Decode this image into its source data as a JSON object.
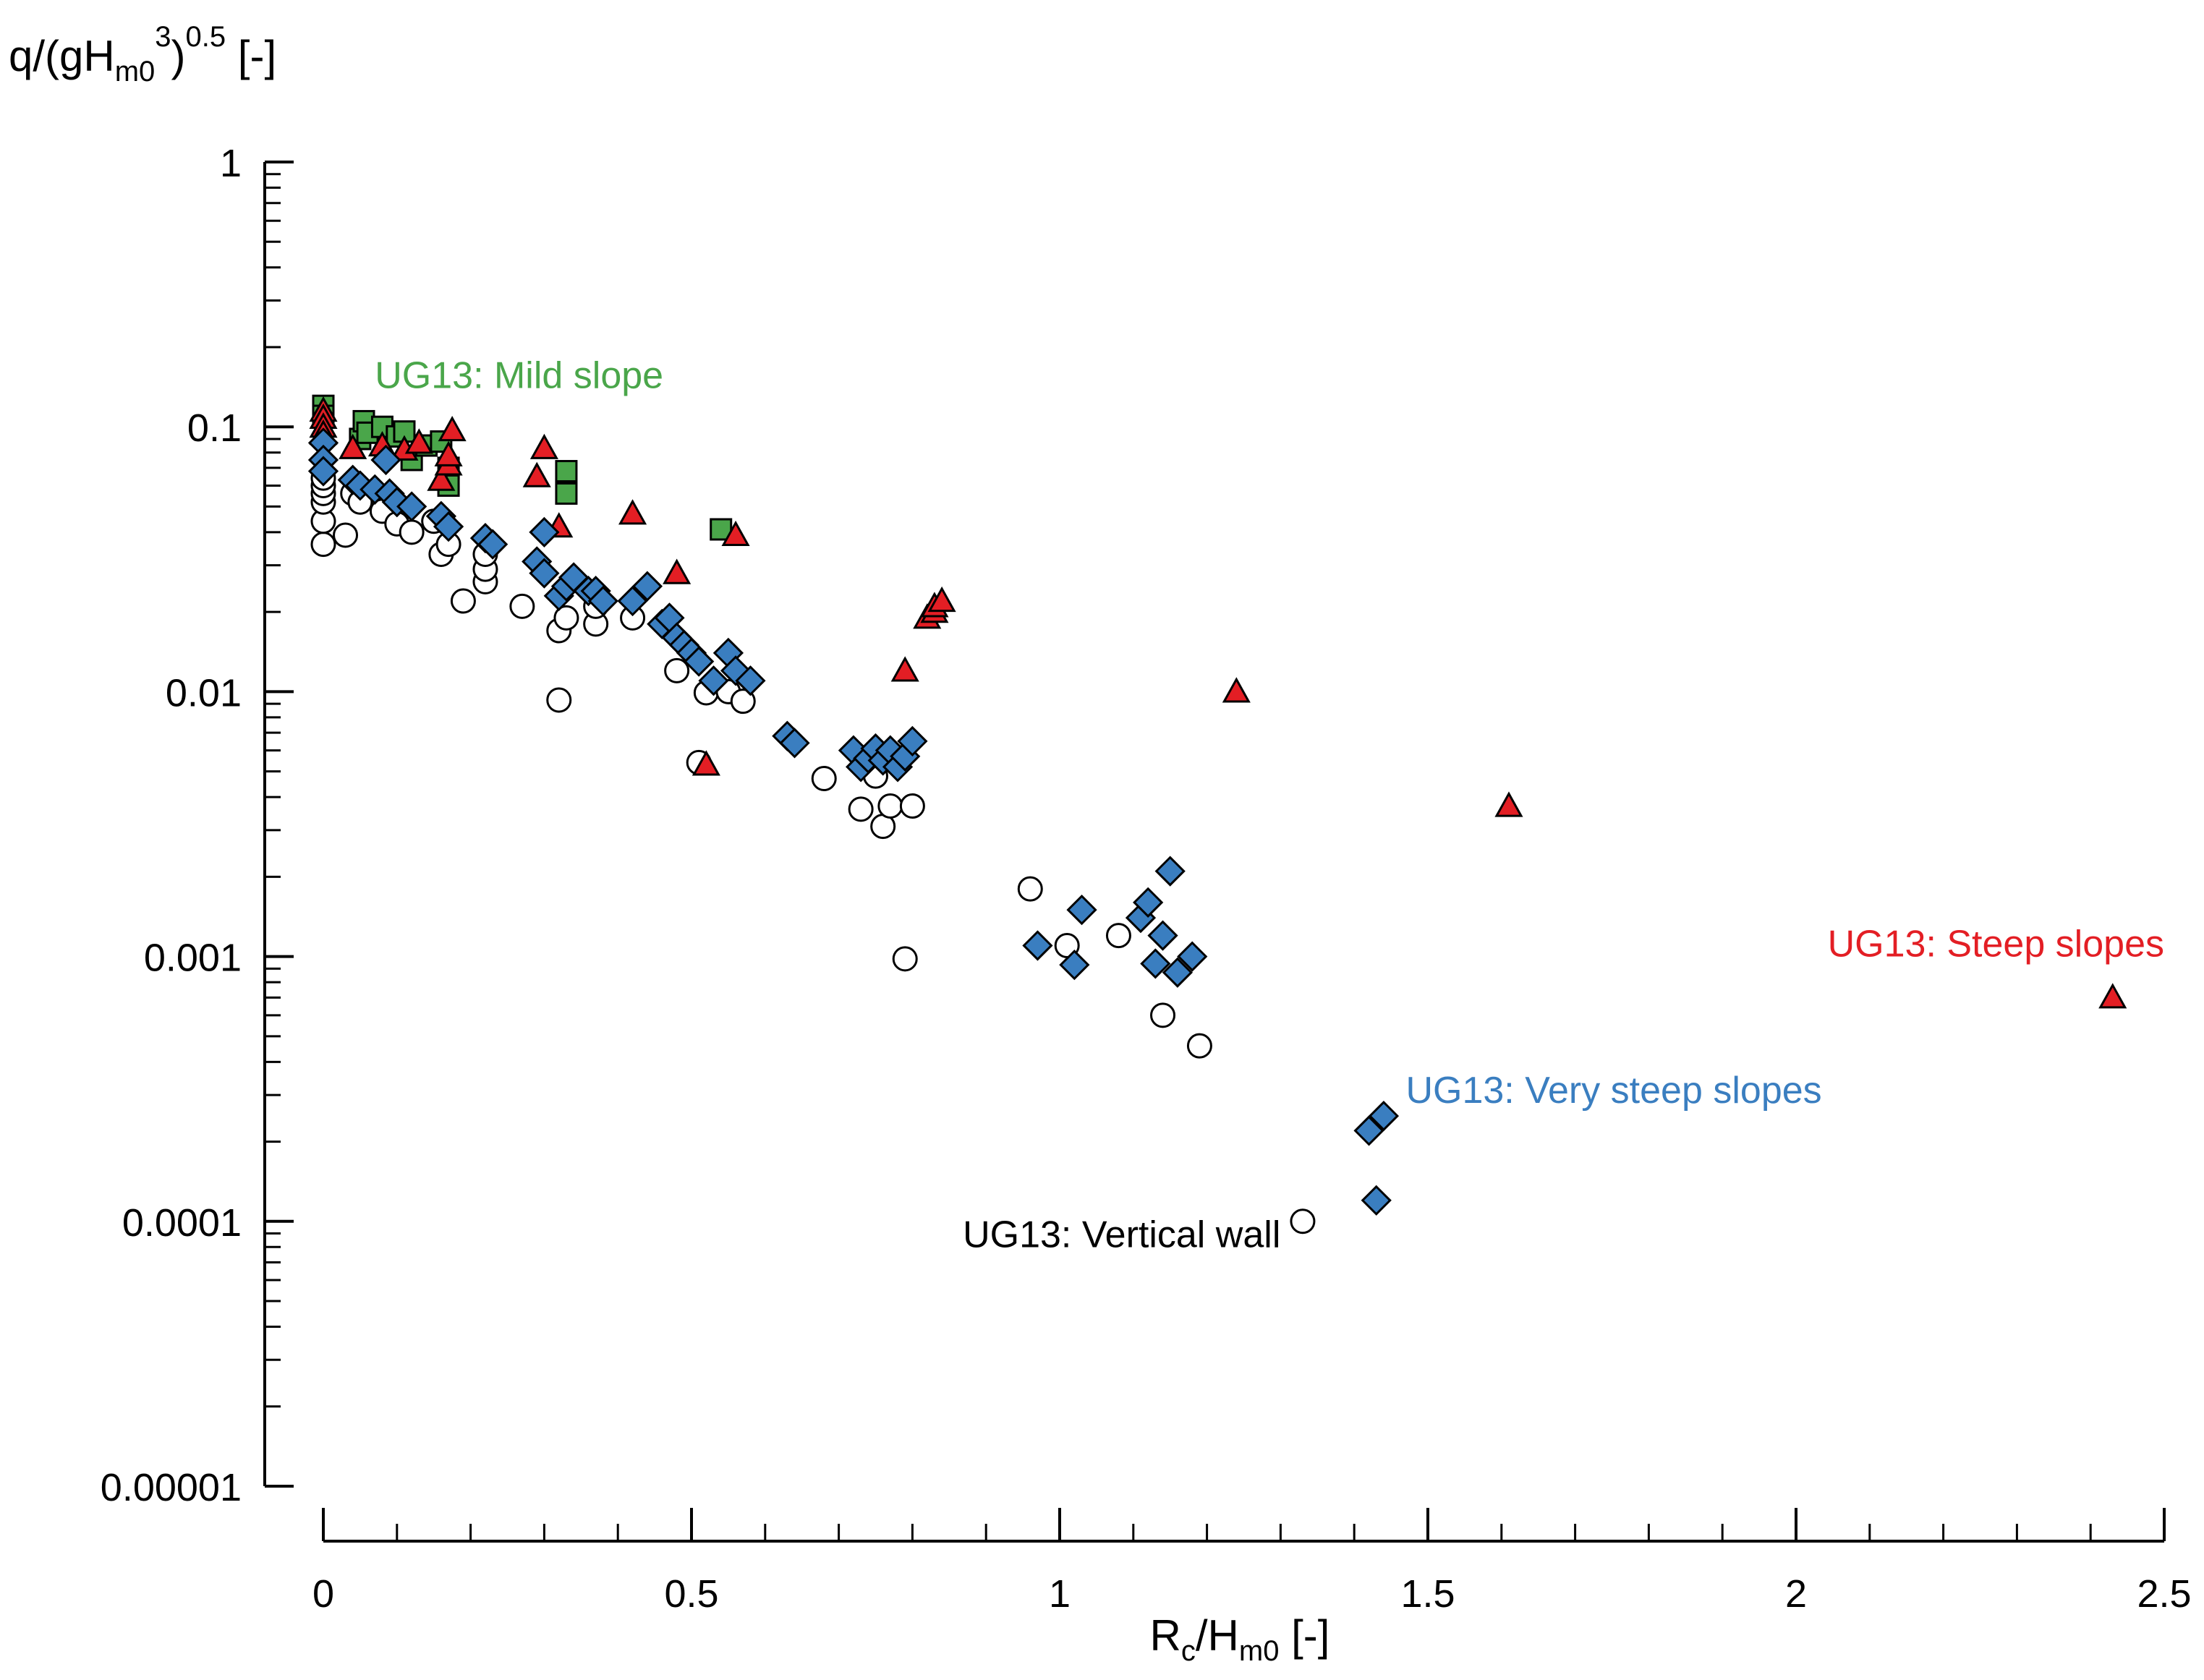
{
  "chart_data": {
    "type": "scatter",
    "title": "",
    "xlabel": {
      "main": "R",
      "sub1": "c",
      "mid": "/H",
      "sub2": "m0",
      "tail": " [-]"
    },
    "ylabel": {
      "pre": "q/(gH",
      "sub": "m0",
      "sup": "3",
      "mid": ")",
      "sup2": "0.5",
      "tail": " [-]"
    },
    "x_axis": {
      "range": [
        0,
        2.5
      ],
      "ticks": [
        0,
        0.5,
        1,
        1.5,
        2,
        2.5
      ],
      "tick_labels": [
        "0",
        "0.5",
        "1",
        "1.5",
        "2",
        "2.5"
      ]
    },
    "y_axis": {
      "scale": "log",
      "range": [
        1e-05,
        1
      ],
      "ticks": [
        1e-05,
        0.0001,
        0.001,
        0.01,
        0.1,
        1
      ],
      "tick_labels": [
        "0.00001",
        "0.0001",
        "0.001",
        "0.01",
        "0.1",
        "1"
      ]
    },
    "grid": false,
    "series": [
      {
        "name": "UG13: Vertical wall",
        "marker": "circle",
        "color": "#ffffff",
        "label_color": "#000000",
        "points": [
          [
            0,
            0.036
          ],
          [
            0,
            0.044
          ],
          [
            0,
            0.052
          ],
          [
            0,
            0.056
          ],
          [
            0,
            0.06
          ],
          [
            0,
            0.064
          ],
          [
            0.03,
            0.039
          ],
          [
            0.04,
            0.056
          ],
          [
            0.05,
            0.052
          ],
          [
            0.08,
            0.048
          ],
          [
            0.1,
            0.043
          ],
          [
            0.12,
            0.04
          ],
          [
            0.15,
            0.044
          ],
          [
            0.16,
            0.033
          ],
          [
            0.17,
            0.036
          ],
          [
            0.19,
            0.022
          ],
          [
            0.22,
            0.026
          ],
          [
            0.22,
            0.029
          ],
          [
            0.22,
            0.033
          ],
          [
            0.27,
            0.021
          ],
          [
            0.32,
            0.0093
          ],
          [
            0.32,
            0.017
          ],
          [
            0.33,
            0.019
          ],
          [
            0.37,
            0.018
          ],
          [
            0.37,
            0.021
          ],
          [
            0.42,
            0.019
          ],
          [
            0.48,
            0.012
          ],
          [
            0.51,
            0.0054
          ],
          [
            0.52,
            0.0099
          ],
          [
            0.55,
            0.01
          ],
          [
            0.57,
            0.0092
          ],
          [
            0.68,
            0.0047
          ],
          [
            0.73,
            0.0036
          ],
          [
            0.75,
            0.0048
          ],
          [
            0.76,
            0.0031
          ],
          [
            0.77,
            0.0037
          ],
          [
            0.8,
            0.0037
          ],
          [
            0.79,
            0.00098
          ],
          [
            0.96,
            0.0018
          ],
          [
            1.01,
            0.0011
          ],
          [
            1.08,
            0.0012
          ],
          [
            1.14,
            0.0006
          ],
          [
            1.19,
            0.00046
          ],
          [
            1.33,
            0.0001
          ]
        ]
      },
      {
        "name": "UG13: Mild slope",
        "marker": "square",
        "color": "#4aa64a",
        "label_color": "#4aa64a",
        "points": [
          [
            0,
            0.12
          ],
          [
            0,
            0.11
          ],
          [
            0.05,
            0.09
          ],
          [
            0.055,
            0.105
          ],
          [
            0.06,
            0.095
          ],
          [
            0.08,
            0.1
          ],
          [
            0.1,
            0.092
          ],
          [
            0.11,
            0.096
          ],
          [
            0.12,
            0.075
          ],
          [
            0.14,
            0.085
          ],
          [
            0.16,
            0.088
          ],
          [
            0.17,
            0.07
          ],
          [
            0.17,
            0.06
          ],
          [
            0.33,
            0.068
          ],
          [
            0.33,
            0.056
          ],
          [
            0.54,
            0.041
          ]
        ]
      },
      {
        "name": "UG13: Steep slopes",
        "marker": "triangle",
        "color": "#e31e24",
        "label_color": "#e31e24",
        "points": [
          [
            0,
            0.115
          ],
          [
            0,
            0.108
          ],
          [
            0,
            0.1
          ],
          [
            0,
            0.094
          ],
          [
            0.04,
            0.083
          ],
          [
            0.08,
            0.085
          ],
          [
            0.11,
            0.082
          ],
          [
            0.13,
            0.087
          ],
          [
            0.16,
            0.063
          ],
          [
            0.17,
            0.072
          ],
          [
            0.17,
            0.078
          ],
          [
            0.175,
            0.097
          ],
          [
            0.29,
            0.065
          ],
          [
            0.3,
            0.083
          ],
          [
            0.32,
            0.042
          ],
          [
            0.42,
            0.047
          ],
          [
            0.48,
            0.028
          ],
          [
            0.52,
            0.0053
          ],
          [
            0.56,
            0.039
          ],
          [
            0.79,
            0.012
          ],
          [
            0.82,
            0.019
          ],
          [
            0.83,
            0.02
          ],
          [
            0.83,
            0.021
          ],
          [
            0.84,
            0.022
          ],
          [
            1.24,
            0.01
          ],
          [
            1.61,
            0.0037
          ],
          [
            2.43,
            0.0007
          ]
        ]
      },
      {
        "name": "UG13: Very steep slopes",
        "marker": "diamond",
        "color": "#3a7ec0",
        "label_color": "#3a7ec0",
        "points": [
          [
            0,
            0.087
          ],
          [
            0,
            0.075
          ],
          [
            0,
            0.068
          ],
          [
            0.04,
            0.063
          ],
          [
            0.05,
            0.06
          ],
          [
            0.07,
            0.058
          ],
          [
            0.085,
            0.075
          ],
          [
            0.09,
            0.056
          ],
          [
            0.1,
            0.052
          ],
          [
            0.12,
            0.05
          ],
          [
            0.16,
            0.046
          ],
          [
            0.17,
            0.042
          ],
          [
            0.22,
            0.038
          ],
          [
            0.23,
            0.036
          ],
          [
            0.29,
            0.031
          ],
          [
            0.3,
            0.028
          ],
          [
            0.3,
            0.04
          ],
          [
            0.32,
            0.023
          ],
          [
            0.33,
            0.025
          ],
          [
            0.34,
            0.027
          ],
          [
            0.36,
            0.024
          ],
          [
            0.37,
            0.024
          ],
          [
            0.38,
            0.022
          ],
          [
            0.42,
            0.022
          ],
          [
            0.44,
            0.025
          ],
          [
            0.46,
            0.018
          ],
          [
            0.47,
            0.019
          ],
          [
            0.48,
            0.016
          ],
          [
            0.49,
            0.015
          ],
          [
            0.5,
            0.014
          ],
          [
            0.51,
            0.013
          ],
          [
            0.53,
            0.011
          ],
          [
            0.55,
            0.014
          ],
          [
            0.56,
            0.012
          ],
          [
            0.58,
            0.011
          ],
          [
            0.63,
            0.0068
          ],
          [
            0.64,
            0.0064
          ],
          [
            0.72,
            0.006
          ],
          [
            0.73,
            0.0052
          ],
          [
            0.74,
            0.0056
          ],
          [
            0.75,
            0.0061
          ],
          [
            0.76,
            0.0055
          ],
          [
            0.77,
            0.006
          ],
          [
            0.78,
            0.0052
          ],
          [
            0.79,
            0.0057
          ],
          [
            0.8,
            0.0065
          ],
          [
            0.97,
            0.0011
          ],
          [
            1.02,
            0.00093
          ],
          [
            1.03,
            0.0015
          ],
          [
            1.11,
            0.0014
          ],
          [
            1.12,
            0.0016
          ],
          [
            1.13,
            0.00094
          ],
          [
            1.14,
            0.0012
          ],
          [
            1.15,
            0.0021
          ],
          [
            1.16,
            0.00087
          ],
          [
            1.18,
            0.001
          ],
          [
            1.42,
            0.00022
          ],
          [
            1.43,
            0.00012
          ],
          [
            1.44,
            0.00025
          ]
        ]
      }
    ],
    "annotations": [
      {
        "text": "UG13: Mild slope",
        "x": 0.07,
        "y": 0.14,
        "color": "#4aa64a",
        "anchor": "start"
      },
      {
        "text": "UG13: Steep slopes",
        "x": 2.5,
        "y": 0.001,
        "color": "#e31e24",
        "anchor": "end"
      },
      {
        "text": "UG13: Very steep slopes",
        "x": 1.47,
        "y": 0.00028,
        "color": "#3a7ec0",
        "anchor": "start"
      },
      {
        "text": "UG13: Vertical wall",
        "x": 1.3,
        "y": 8e-05,
        "color": "#000000",
        "anchor": "end"
      }
    ]
  }
}
